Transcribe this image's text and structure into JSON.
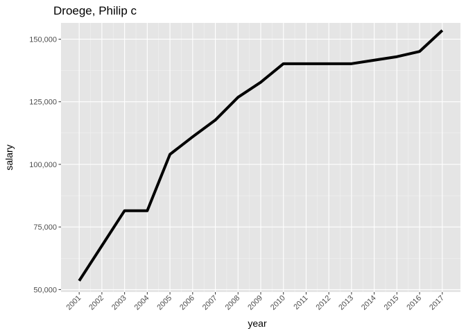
{
  "chart_data": {
    "type": "line",
    "title": "Droege, Philip c",
    "xlabel": "year",
    "ylabel": "salary",
    "x": [
      2001,
      2002,
      2003,
      2004,
      2005,
      2006,
      2007,
      2008,
      2009,
      2010,
      2011,
      2012,
      2013,
      2014,
      2015,
      2016,
      2017
    ],
    "x_tick_labels": [
      "2001",
      "2002",
      "2003",
      "2004",
      "2005",
      "2006",
      "2007",
      "2008",
      "2009",
      "2010",
      "2011",
      "2012",
      "2013",
      "2014",
      "2015",
      "2016",
      "2017"
    ],
    "series": [
      {
        "values": [
          53500,
          67500,
          81500,
          81500,
          104000,
          111000,
          117700,
          126800,
          132800,
          140200,
          140200,
          140200,
          140200,
          141600,
          143000,
          145100,
          153500
        ]
      }
    ],
    "y_ticks": [
      50000,
      75000,
      100000,
      125000,
      150000
    ],
    "y_tick_labels": [
      "50,000",
      "75,000",
      "100,000",
      "125,000",
      "150,000"
    ],
    "ylim": [
      49000,
      156500
    ],
    "grid": true,
    "colors": {
      "panel": "#e5e5e5",
      "grid_major": "#ffffff",
      "grid_minor": "#f2f2f2",
      "line": "#000000",
      "tick_text": "#4d4d4d",
      "tick_mark": "#333333"
    }
  }
}
